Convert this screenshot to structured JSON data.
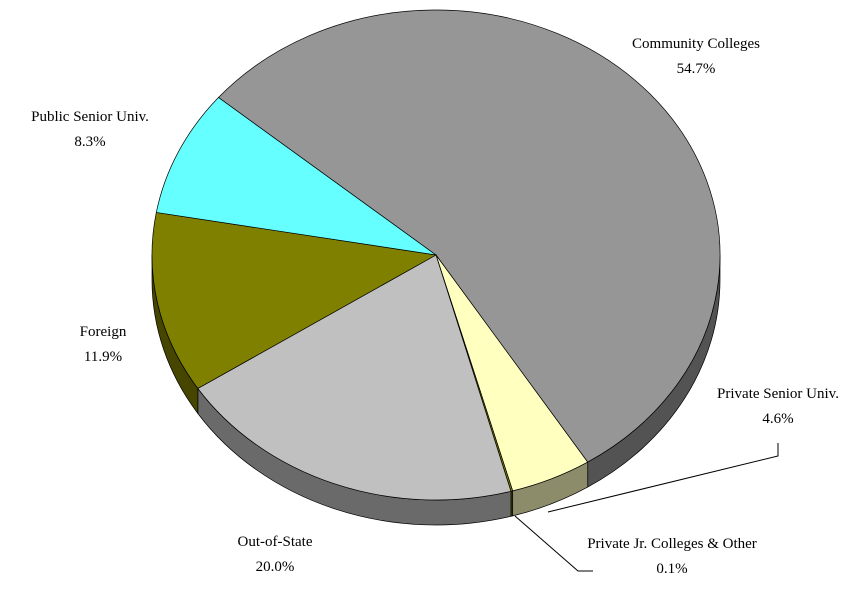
{
  "chart_data": {
    "type": "pie",
    "categories": [
      "Community Colleges",
      "Private Senior Univ.",
      "Private Jr. Colleges & Other",
      "Out-of-State",
      "Foreign",
      "Public Senior Univ."
    ],
    "values": [
      54.7,
      4.6,
      0.1,
      20.0,
      11.9,
      8.3
    ],
    "value_labels": [
      "54.7%",
      "4.6%",
      "0.1%",
      "20.0%",
      "11.9%",
      "8.3%"
    ],
    "colors": [
      "#969696",
      "#ffffc0",
      "#808000",
      "#c0c0c0",
      "#808000",
      "#66ffff"
    ],
    "three_d": true
  }
}
